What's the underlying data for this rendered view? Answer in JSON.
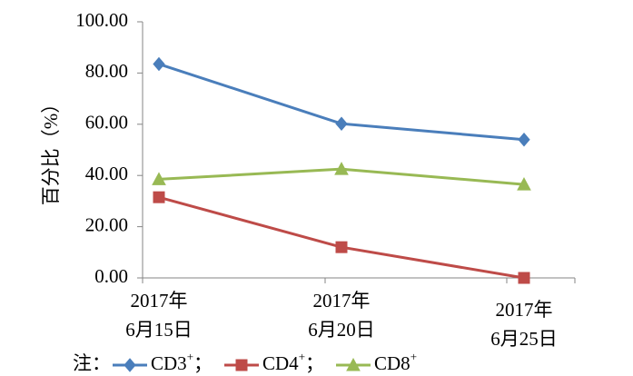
{
  "chart_data": {
    "type": "line",
    "categories": [
      [
        "2017年",
        "6月15日"
      ],
      [
        "2017年",
        "6月20日"
      ],
      [
        "2017年",
        "6月25日"
      ]
    ],
    "ylabel": "百分比（%）",
    "ylim": [
      0,
      100
    ],
    "yticks": [
      "0.00",
      "20.00",
      "40.00",
      "60.00",
      "80.00",
      "100.00"
    ],
    "grid": false,
    "legend_prefix": "注：",
    "legend_position": "bottom",
    "series": [
      {
        "name": "CD3",
        "sup": "+",
        "sep": "；",
        "color": "#4A7EBB",
        "marker": "diamond",
        "values": [
          83.5,
          60.2,
          54.0
        ]
      },
      {
        "name": "CD4",
        "sup": "+",
        "sep": "；",
        "color": "#BE4B48",
        "marker": "square",
        "values": [
          31.5,
          12.0,
          0.0
        ]
      },
      {
        "name": "CD8",
        "sup": "+",
        "sep": "",
        "color": "#98B954",
        "marker": "triangle",
        "values": [
          38.5,
          42.5,
          36.5
        ]
      }
    ]
  }
}
